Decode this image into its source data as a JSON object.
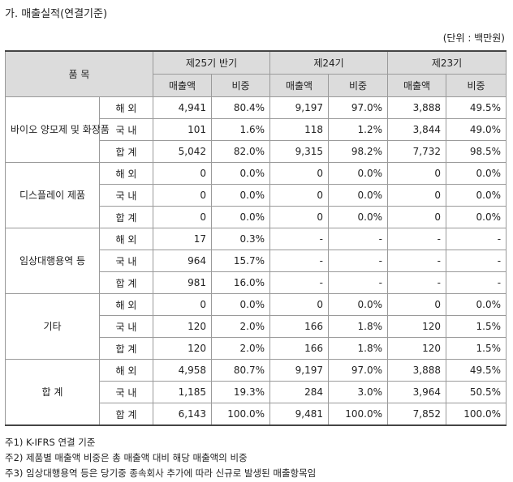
{
  "title": "가. 매출실적(연결기준)",
  "unit": "(단위 : 백만원)",
  "header": {
    "item": "품 목",
    "periods": [
      "제25기 반기",
      "제24기",
      "제23기"
    ],
    "sub": [
      "매출액",
      "비중"
    ]
  },
  "groups": [
    {
      "name": "바이오 양모제 및 화장품",
      "rows": [
        {
          "region": "해 외",
          "cells": [
            "4,941",
            "80.4%",
            "9,197",
            "97.0%",
            "3,888",
            "49.5%"
          ]
        },
        {
          "region": "국 내",
          "cells": [
            "101",
            "1.6%",
            "118",
            "1.2%",
            "3,844",
            "49.0%"
          ]
        },
        {
          "region": "합 계",
          "cells": [
            "5,042",
            "82.0%",
            "9,315",
            "98.2%",
            "7,732",
            "98.5%"
          ]
        }
      ]
    },
    {
      "name": "디스플레이 제품",
      "rows": [
        {
          "region": "해 외",
          "cells": [
            "0",
            "0.0%",
            "0",
            "0.0%",
            "0",
            "0.0%"
          ]
        },
        {
          "region": "국 내",
          "cells": [
            "0",
            "0.0%",
            "0",
            "0.0%",
            "0",
            "0.0%"
          ]
        },
        {
          "region": "합 계",
          "cells": [
            "0",
            "0.0%",
            "0",
            "0.0%",
            "0",
            "0.0%"
          ]
        }
      ]
    },
    {
      "name": "임상대행용역 등",
      "rows": [
        {
          "region": "해 외",
          "cells": [
            "17",
            "0.3%",
            "-",
            "-",
            "-",
            "-"
          ]
        },
        {
          "region": "국 내",
          "cells": [
            "964",
            "15.7%",
            "-",
            "-",
            "-",
            "-"
          ]
        },
        {
          "region": "합 계",
          "cells": [
            "981",
            "16.0%",
            "-",
            "-",
            "-",
            "-"
          ]
        }
      ]
    },
    {
      "name": "기타",
      "rows": [
        {
          "region": "해 외",
          "cells": [
            "0",
            "0.0%",
            "0",
            "0.0%",
            "0",
            "0.0%"
          ]
        },
        {
          "region": "국 내",
          "cells": [
            "120",
            "2.0%",
            "166",
            "1.8%",
            "120",
            "1.5%"
          ]
        },
        {
          "region": "합 계",
          "cells": [
            "120",
            "2.0%",
            "166",
            "1.8%",
            "120",
            "1.5%"
          ]
        }
      ]
    },
    {
      "name": "합 계",
      "rows": [
        {
          "region": "해 외",
          "cells": [
            "4,958",
            "80.7%",
            "9,197",
            "97.0%",
            "3,888",
            "49.5%"
          ]
        },
        {
          "region": "국 내",
          "cells": [
            "1,185",
            "19.3%",
            "284",
            "3.0%",
            "3,964",
            "50.5%"
          ]
        },
        {
          "region": "합 계",
          "cells": [
            "6,143",
            "100.0%",
            "9,481",
            "100.0%",
            "7,852",
            "100.0%"
          ]
        }
      ]
    }
  ],
  "notes": [
    "주1) K-IFRS 연결 기준",
    "주2) 제품별 매출액 비중은 총 매출액 대비 해당 매출액의 비중",
    "주3) 임상대행용역 등은 당기중 종속회사 추가에 따라 신규로 발생된 매출항목임"
  ]
}
